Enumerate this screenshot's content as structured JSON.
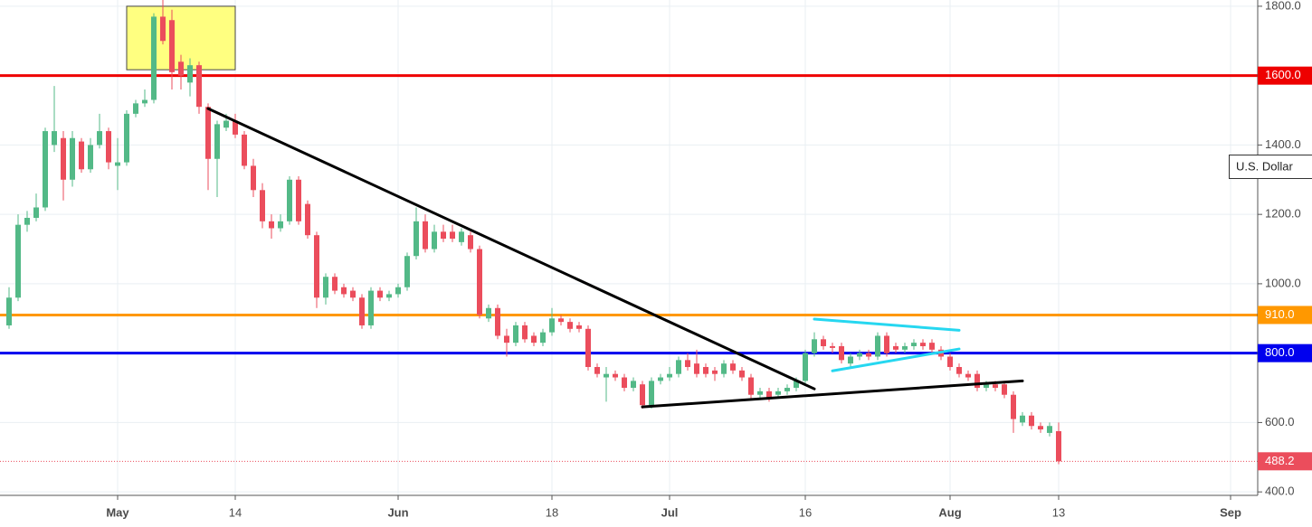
{
  "chart_data": {
    "type": "candlestick",
    "x": [
      "04-19",
      "04-20",
      "04-21",
      "04-22",
      "04-23",
      "04-24",
      "04-25",
      "04-26",
      "04-27",
      "04-28",
      "04-29",
      "04-30",
      "05-01",
      "05-02",
      "05-03",
      "05-04",
      "05-05",
      "05-06",
      "05-07",
      "05-08",
      "05-09",
      "05-10",
      "05-11",
      "05-12",
      "05-13",
      "05-14",
      "05-15",
      "05-16",
      "05-17",
      "05-18",
      "05-19",
      "05-20",
      "05-21",
      "05-22",
      "05-23",
      "05-24",
      "05-25",
      "05-26",
      "05-27",
      "05-28",
      "05-29",
      "05-30",
      "05-31",
      "06-01",
      "06-02",
      "06-03",
      "06-04",
      "06-05",
      "06-06",
      "06-07",
      "06-08",
      "06-09",
      "06-10",
      "06-11",
      "06-12",
      "06-13",
      "06-14",
      "06-15",
      "06-16",
      "06-17",
      "06-18",
      "06-19",
      "06-20",
      "06-21",
      "06-22",
      "06-23",
      "06-24",
      "06-25",
      "06-26",
      "06-27",
      "06-28",
      "06-29",
      "06-30",
      "07-01",
      "07-02",
      "07-03",
      "07-04",
      "07-05",
      "07-06",
      "07-07",
      "07-08",
      "07-09",
      "07-10",
      "07-11",
      "07-12",
      "07-13",
      "07-14",
      "07-15",
      "07-16",
      "07-17",
      "07-18",
      "07-19",
      "07-20",
      "07-21",
      "07-22",
      "07-23",
      "07-24",
      "07-25",
      "07-26",
      "07-27",
      "07-28",
      "07-29",
      "07-30",
      "07-31",
      "08-01",
      "08-02",
      "08-03",
      "08-04",
      "08-05",
      "08-06",
      "08-07",
      "08-08",
      "08-09",
      "08-10",
      "08-11",
      "08-12",
      "08-13"
    ],
    "open": [
      880,
      960,
      1170,
      1190,
      1220,
      1400,
      1420,
      1300,
      1410,
      1330,
      1400,
      1440,
      1340,
      1350,
      1490,
      1520,
      1530,
      1770,
      1760,
      1640,
      1580,
      1630,
      1510,
      1360,
      1450,
      1470,
      1430,
      1340,
      1270,
      1180,
      1160,
      1180,
      1300,
      1230,
      1140,
      960,
      1020,
      990,
      980,
      960,
      880,
      980,
      960,
      970,
      990,
      1080,
      1180,
      1100,
      1150,
      1150,
      1120,
      1140,
      1100,
      900,
      930,
      850,
      830,
      880,
      850,
      830,
      860,
      900,
      890,
      880,
      870,
      760,
      730,
      740,
      730,
      700,
      710,
      650,
      720,
      730,
      740,
      780,
      770,
      760,
      750,
      740,
      770,
      750,
      730,
      680,
      690,
      680,
      690,
      700,
      720,
      800,
      840,
      820,
      820,
      770,
      790,
      800,
      790,
      850,
      820,
      810,
      820,
      830,
      830,
      810,
      790,
      760,
      740,
      740,
      700,
      710,
      710,
      680,
      600,
      620,
      590,
      570,
      575
    ],
    "high": [
      990,
      1200,
      1210,
      1260,
      1450,
      1570,
      1440,
      1440,
      1420,
      1420,
      1490,
      1450,
      1420,
      1500,
      1530,
      1560,
      1780,
      1820,
      1790,
      1660,
      1650,
      1640,
      1520,
      1470,
      1490,
      1490,
      1440,
      1360,
      1290,
      1200,
      1200,
      1310,
      1310,
      1240,
      1150,
      1030,
      1030,
      1000,
      990,
      970,
      990,
      990,
      980,
      1000,
      1090,
      1220,
      1200,
      1170,
      1170,
      1170,
      1160,
      1150,
      1110,
      940,
      940,
      870,
      890,
      890,
      860,
      870,
      930,
      910,
      900,
      890,
      880,
      770,
      760,
      750,
      740,
      730,
      720,
      730,
      740,
      760,
      790,
      800,
      810,
      770,
      760,
      780,
      780,
      760,
      740,
      700,
      700,
      700,
      710,
      730,
      810,
      860,
      850,
      830,
      830,
      800,
      810,
      810,
      860,
      860,
      830,
      830,
      840,
      840,
      840,
      820,
      800,
      770,
      750,
      750,
      720,
      720,
      720,
      690,
      630,
      630,
      600,
      600,
      600
    ],
    "low": [
      870,
      950,
      1150,
      1180,
      1210,
      1380,
      1240,
      1280,
      1320,
      1320,
      1390,
      1330,
      1270,
      1340,
      1480,
      1510,
      1520,
      1690,
      1560,
      1560,
      1540,
      1490,
      1270,
      1250,
      1440,
      1420,
      1330,
      1250,
      1160,
      1130,
      1150,
      1170,
      1170,
      1130,
      930,
      940,
      970,
      960,
      950,
      870,
      870,
      950,
      950,
      960,
      980,
      1070,
      1090,
      1090,
      1120,
      1120,
      1110,
      1090,
      900,
      890,
      840,
      790,
      820,
      830,
      820,
      820,
      850,
      880,
      860,
      860,
      750,
      730,
      660,
      720,
      690,
      690,
      640,
      640,
      710,
      720,
      730,
      750,
      730,
      730,
      720,
      730,
      740,
      720,
      670,
      670,
      660,
      670,
      680,
      690,
      710,
      790,
      810,
      800,
      770,
      760,
      780,
      780,
      780,
      790,
      800,
      800,
      810,
      810,
      800,
      780,
      750,
      730,
      720,
      690,
      690,
      690,
      670,
      570,
      590,
      580,
      570,
      560,
      480
    ],
    "close": [
      960,
      1170,
      1190,
      1220,
      1440,
      1440,
      1300,
      1420,
      1330,
      1400,
      1440,
      1350,
      1350,
      1490,
      1520,
      1530,
      1770,
      1700,
      1610,
      1600,
      1630,
      1510,
      1360,
      1460,
      1470,
      1430,
      1340,
      1270,
      1180,
      1160,
      1180,
      1300,
      1180,
      1140,
      960,
      1020,
      980,
      970,
      960,
      880,
      980,
      960,
      970,
      990,
      1080,
      1180,
      1100,
      1150,
      1130,
      1130,
      1150,
      1100,
      910,
      930,
      850,
      830,
      880,
      840,
      830,
      860,
      900,
      890,
      870,
      870,
      760,
      740,
      740,
      730,
      700,
      720,
      650,
      720,
      730,
      740,
      780,
      760,
      740,
      740,
      740,
      770,
      750,
      730,
      680,
      690,
      670,
      690,
      700,
      720,
      800,
      840,
      820,
      815,
      780,
      790,
      800,
      790,
      850,
      800,
      810,
      820,
      830,
      820,
      810,
      790,
      760,
      740,
      730,
      700,
      710,
      700,
      680,
      610,
      620,
      590,
      580,
      590,
      488.2
    ],
    "up_color": "#53b987",
    "down_color": "#eb4d5c",
    "xlim": [
      "04-18",
      "09-04"
    ],
    "xticks": [
      {
        "value": "05-01",
        "label": "May"
      },
      {
        "value": "05-14",
        "label": "14"
      },
      {
        "value": "06-01",
        "label": "Jun"
      },
      {
        "value": "06-18",
        "label": "18"
      },
      {
        "value": "07-01",
        "label": "Jul"
      },
      {
        "value": "07-16",
        "label": "16"
      },
      {
        "value": "08-01",
        "label": "Aug"
      },
      {
        "value": "08-13",
        "label": "13"
      },
      {
        "value": "09-01",
        "label": "Sep"
      }
    ],
    "ylim": [
      390,
      1818
    ],
    "yticks": [
      {
        "value": 400,
        "label": "400.0"
      },
      {
        "value": 600,
        "label": "600.0"
      },
      {
        "value": 1000,
        "label": "1000.0"
      },
      {
        "value": 1200,
        "label": "1200.0"
      },
      {
        "value": 1400,
        "label": "1400.0"
      },
      {
        "value": 1800,
        "label": "1800.0"
      }
    ],
    "grid": true,
    "axis_label": "U.S. Dollar",
    "levels": [
      {
        "value": 1600,
        "label": "1600.0",
        "color": "#ee0000"
      },
      {
        "value": 910,
        "label": "910.0",
        "color": "#ff9800"
      },
      {
        "value": 800,
        "label": "800.0",
        "color": "#0000ee"
      }
    ],
    "current_price": {
      "value": 488.2,
      "label": "488.2",
      "color": "#eb4d5c"
    },
    "trendlines": [
      {
        "color": "#000000",
        "x": [
          "05-11",
          "07-17"
        ],
        "y": [
          1505,
          697
        ]
      },
      {
        "color": "#000000",
        "x": [
          "06-28",
          "08-09"
        ],
        "y": [
          645,
          720
        ]
      },
      {
        "color": "#26d7f0",
        "x": [
          "07-17",
          "08-02"
        ],
        "y": [
          898,
          866
        ]
      },
      {
        "color": "#26d7f0",
        "x": [
          "07-19",
          "08-02"
        ],
        "y": [
          749,
          812
        ]
      }
    ],
    "highlight_box": {
      "color": "#ffff80",
      "x": [
        "05-02",
        "05-14"
      ],
      "y": [
        1800,
        1617
      ]
    }
  }
}
